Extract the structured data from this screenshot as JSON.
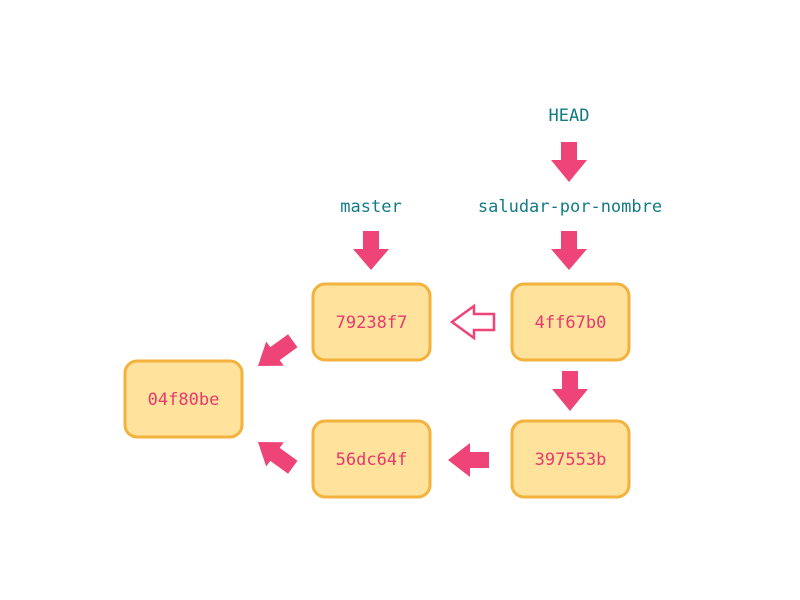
{
  "colors": {
    "label_text": "#127b86",
    "commit_text": "#e8386d",
    "commit_fill": "#ffe39d",
    "commit_stroke": "#f2b23c",
    "arrow": "#ef4477",
    "background": "#ffffff"
  },
  "refs": {
    "head": "HEAD",
    "master": "master",
    "branch": "saludar-por-nombre"
  },
  "commits": {
    "c1": "04f80be",
    "c2": "79238f7",
    "c3": "4ff67b0",
    "c4": "56dc64f",
    "c5": "397553b"
  }
}
